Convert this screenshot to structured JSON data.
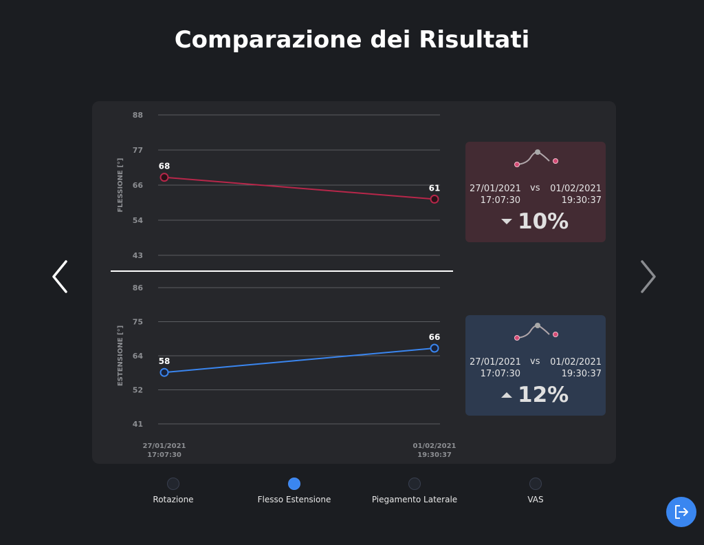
{
  "header": {
    "title": "Comparazione dei Risultati"
  },
  "chart_data": [
    {
      "type": "line",
      "ylabel": "FLESSIONE [°]",
      "y_ticks": [
        "88",
        "77",
        "66",
        "54",
        "43"
      ],
      "ylim": [
        43,
        88
      ],
      "x": [
        "27/01/2021 17:07:30",
        "01/02/2021 19:30:37"
      ],
      "series": [
        {
          "values": [
            68,
            61
          ]
        }
      ],
      "data_labels": [
        "68",
        "61"
      ],
      "color": "#b8274a"
    },
    {
      "type": "line",
      "ylabel": "ESTENSIONE [°]",
      "y_ticks": [
        "86",
        "75",
        "64",
        "52",
        "41"
      ],
      "ylim": [
        41,
        86
      ],
      "x": [
        "27/01/2021 17:07:30",
        "01/02/2021 19:30:37"
      ],
      "x_tick_labels": [
        {
          "date": "27/01/2021",
          "time": "17:07:30"
        },
        {
          "date": "01/02/2021",
          "time": "19:30:37"
        }
      ],
      "series": [
        {
          "values": [
            58,
            66
          ]
        }
      ],
      "data_labels": [
        "58",
        "66"
      ],
      "color": "#3a86f0"
    }
  ],
  "cards": [
    {
      "date_a": "27/01/2021",
      "time_a": "17:07:30",
      "vs": "vs",
      "date_b": "01/02/2021",
      "time_b": "19:30:37",
      "direction": "down",
      "change": "10%"
    },
    {
      "date_a": "27/01/2021",
      "time_a": "17:07:30",
      "vs": "vs",
      "date_b": "01/02/2021",
      "time_b": "19:30:37",
      "direction": "up",
      "change": "12%"
    }
  ],
  "nav": {
    "prev_icon": "chevron-left-icon",
    "next_icon": "chevron-right-icon"
  },
  "tabs": [
    {
      "label": "Rotazione",
      "active": false
    },
    {
      "label": "Flesso Estensione",
      "active": true
    },
    {
      "label": "Piegamento Laterale",
      "active": false
    },
    {
      "label": "VAS",
      "active": false
    }
  ],
  "exit": {
    "icon": "exit-icon"
  },
  "colors": {
    "accent": "#3a86f0",
    "flex_line": "#b8274a",
    "ext_line": "#3a86f0",
    "background": "#1b1d21",
    "panel": "#26272b"
  }
}
